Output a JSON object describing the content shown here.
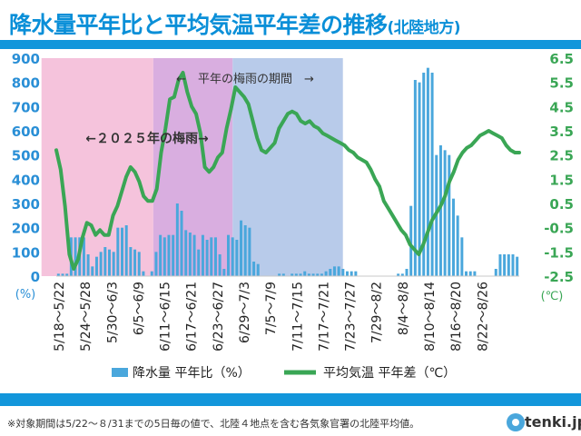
{
  "title": {
    "main": "降水量平年比と平均気温平年差の推移",
    "region": "(北陸地方)"
  },
  "footnote": "※対象期間は5/22～８/31までの5日毎の値で、北陸４地点を含む各気象官署の北陸平均値。",
  "logo": "tenki.jp",
  "colors": {
    "precip": "#4aa7dc",
    "temp": "#3aa655",
    "rainy_2025": "#f5c3dc",
    "rainy_normal": "#b8cbea",
    "overlap": "#d9aee0",
    "accent": "#1296db"
  },
  "chart_data": {
    "type": "bar+line",
    "categories": [
      "5/18～5/22",
      "5/24～5/28",
      "5/30～6/3",
      "6/5～6/9",
      "6/11～6/15",
      "6/17～6/21",
      "6/23～6/27",
      "6/29～7/3",
      "7/5～7/9",
      "7/11～7/15",
      "7/17～7/21",
      "7/23～7/27",
      "7/29～8/2",
      "8/4～8/8",
      "8/10～8/14",
      "8/16～8/20",
      "8/22～8/26"
    ],
    "y_left": {
      "unit": "(%)",
      "min": 0,
      "max": 900,
      "ticks": [
        0,
        100,
        200,
        300,
        400,
        500,
        600,
        700,
        800,
        900
      ]
    },
    "y_right": {
      "unit": "(℃)",
      "min": -2.5,
      "max": 6.5,
      "ticks": [
        -2.5,
        -1.5,
        -0.5,
        0.5,
        1.5,
        2.5,
        3.5,
        4.5,
        5.5,
        6.5
      ]
    },
    "day_start": "5/18",
    "day_end": "8/31",
    "precip_series": {
      "name": "降水量 平年比（%）",
      "values": [
        10,
        10,
        10,
        160,
        160,
        160,
        160,
        90,
        40,
        80,
        100,
        120,
        110,
        100,
        200,
        200,
        210,
        120,
        110,
        100,
        20,
        0,
        20,
        100,
        170,
        160,
        170,
        170,
        300,
        270,
        190,
        180,
        170,
        110,
        170,
        150,
        160,
        160,
        90,
        30,
        170,
        160,
        150,
        230,
        210,
        200,
        60,
        50,
        0,
        0,
        0,
        0,
        10,
        10,
        0,
        10,
        10,
        10,
        20,
        10,
        10,
        10,
        10,
        20,
        30,
        40,
        40,
        30,
        20,
        20,
        20,
        0,
        0,
        0,
        0,
        0,
        0,
        0,
        0,
        0,
        10,
        10,
        30,
        290,
        810,
        800,
        840,
        860,
        840,
        500,
        540,
        520,
        500,
        320,
        250,
        160,
        20,
        20,
        20,
        0,
        0,
        0,
        0,
        30,
        90,
        90,
        90,
        90,
        80
      ]
    },
    "temp_series": {
      "name": "平均気温 平年差（℃）",
      "values": [
        2.7,
        1.9,
        0.4,
        -1.6,
        -2.2,
        -1.8,
        -0.9,
        -0.3,
        -0.4,
        -0.8,
        -0.6,
        -0.8,
        -0.8,
        0.0,
        0.4,
        1.0,
        1.6,
        2.0,
        1.8,
        1.4,
        0.8,
        0.6,
        0.6,
        1.1,
        2.6,
        3.6,
        4.8,
        4.9,
        5.6,
        5.9,
        5.1,
        4.5,
        4.2,
        3.4,
        2.0,
        1.8,
        2.0,
        2.4,
        2.6,
        3.6,
        4.4,
        5.3,
        5.1,
        4.9,
        4.6,
        3.9,
        3.2,
        2.7,
        2.6,
        2.8,
        3.0,
        3.6,
        3.9,
        4.2,
        4.3,
        4.2,
        3.9,
        3.8,
        3.9,
        3.7,
        3.6,
        3.4,
        3.3,
        3.2,
        3.1,
        3.0,
        2.9,
        2.7,
        2.6,
        2.4,
        2.3,
        2.2,
        1.9,
        1.5,
        1.2,
        0.6,
        0.3,
        0.0,
        -0.3,
        -0.6,
        -0.8,
        -1.2,
        -1.4,
        -1.6,
        -1.2,
        -0.7,
        -0.2,
        0.1,
        0.4,
        0.8,
        1.4,
        1.8,
        2.3,
        2.6,
        2.8,
        2.9,
        3.1,
        3.3,
        3.4,
        3.5,
        3.4,
        3.3,
        3.2,
        2.9,
        2.7,
        2.6,
        2.6
      ]
    },
    "annotations": {
      "rainy_2025": "←２０２５年の梅雨→",
      "rainy_normal": "←　平年の梅雨の期間　→"
    },
    "bands": [
      {
        "name": "2025年の梅雨",
        "from": "6/9",
        "to": "6/27"
      },
      {
        "name": "平年の梅雨の期間",
        "from": "6/9",
        "to": "7/22"
      }
    ],
    "legend": {
      "position": "bottom",
      "items": [
        "降水量 平年比（%）",
        "平均気温 平年差（℃）"
      ]
    },
    "grid": false
  }
}
